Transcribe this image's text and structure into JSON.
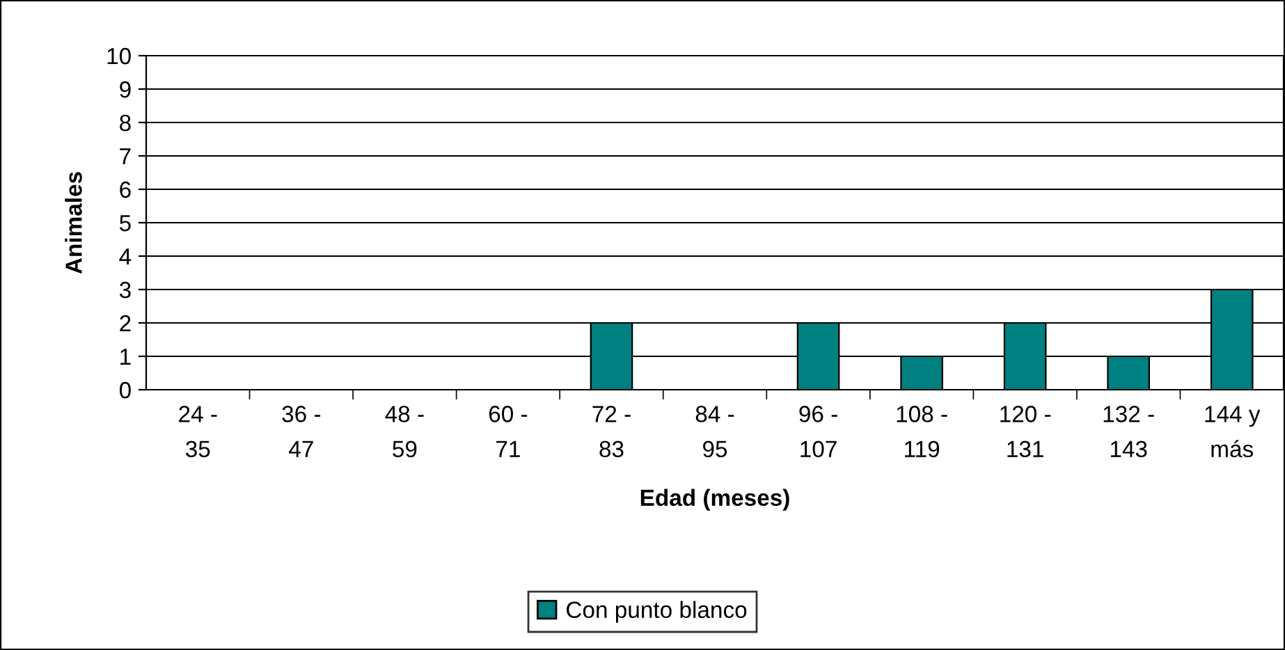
{
  "chart_data": {
    "type": "bar",
    "xlabel": "Edad (meses)",
    "ylabel": "Animales",
    "categories": [
      "24 -\n35",
      "36 -\n47",
      "48 -\n59",
      "60 -\n71",
      "72 -\n83",
      "84 -\n95",
      "96 -\n107",
      "108 -\n119",
      "120 -\n131",
      "132 -\n143",
      "144 y\nmás"
    ],
    "series": [
      {
        "name": "Con punto blanco",
        "color": "#008080",
        "values": [
          0,
          0,
          0,
          0,
          2,
          0,
          2,
          1,
          2,
          1,
          3
        ]
      }
    ],
    "ylim": [
      0,
      10
    ],
    "yticks": [
      0,
      1,
      2,
      3,
      4,
      5,
      6,
      7,
      8,
      9,
      10
    ],
    "grid": "y",
    "legend": "bottom"
  }
}
